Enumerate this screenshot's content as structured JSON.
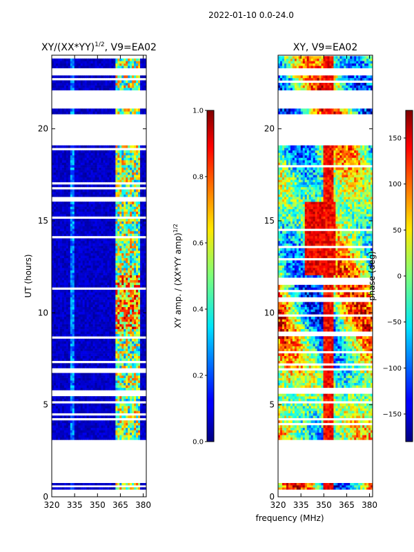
{
  "chart_data": {
    "type": "heatmap",
    "suptitle": "2022-01-10 0.0-24.0",
    "shared_xlabel": "frequency (MHz)",
    "panels": [
      {
        "id": "amp",
        "title_main": "XY/(XX*YY)",
        "title_exp": "1/2",
        "title_tail": ", V9=EA02",
        "xlim": [
          320,
          382
        ],
        "ylim": [
          0,
          24
        ],
        "xticks": [
          320,
          335,
          350,
          365,
          380
        ],
        "yticks": [
          0,
          5,
          10,
          15,
          20
        ],
        "ylabel": "UT (hours)",
        "colorbar": {
          "label_main": "XY amp. / (XX*YY amp)",
          "label_exp": "1/2",
          "min": 0.0,
          "max": 1.0,
          "ticks": [
            "0.0",
            "0.2",
            "0.4",
            "0.6",
            "0.8",
            "1.0"
          ],
          "colormap": "jet"
        }
      },
      {
        "id": "phase",
        "title_main": "XY, V9=EA02",
        "xlim": [
          320,
          382
        ],
        "ylim": [
          0,
          24
        ],
        "xticks": [
          320,
          335,
          350,
          365,
          380
        ],
        "yticks": [
          0,
          5,
          10,
          15,
          20
        ],
        "colorbar": {
          "label": "phase (deg)",
          "min": -180,
          "max": 180,
          "ticks": [
            "−150",
            "−100",
            "−50",
            "0",
            "50",
            "100",
            "150"
          ],
          "colormap": "jet"
        }
      }
    ],
    "data_coverage_hours": [
      [
        0.4,
        0.75
      ],
      [
        3.1,
        5.6
      ],
      [
        5.8,
        19.1
      ],
      [
        20.8,
        21.1
      ],
      [
        22.1,
        22.9
      ],
      [
        23.3,
        23.95
      ]
    ]
  }
}
